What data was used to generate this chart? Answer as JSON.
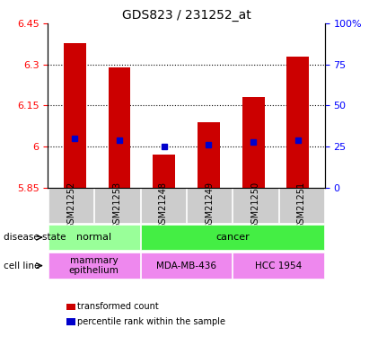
{
  "title": "GDS823 / 231252_at",
  "samples": [
    "GSM21252",
    "GSM21253",
    "GSM21248",
    "GSM21249",
    "GSM21250",
    "GSM21251"
  ],
  "transformed_counts": [
    6.38,
    6.29,
    5.97,
    6.09,
    6.18,
    6.33
  ],
  "percentile_ranks": [
    30,
    29,
    25,
    26,
    28,
    29
  ],
  "ymin": 5.85,
  "ymax": 6.45,
  "yticks": [
    5.85,
    6.0,
    6.15,
    6.3,
    6.45
  ],
  "ytick_labels": [
    "5.85",
    "6",
    "6.15",
    "6.3",
    "6.45"
  ],
  "y2ticks": [
    0,
    25,
    50,
    75,
    100
  ],
  "y2tick_labels": [
    "0",
    "25",
    "50",
    "75",
    "100%"
  ],
  "bar_color": "#cc0000",
  "dot_color": "#0000cc",
  "bar_width": 0.5,
  "disease_states": [
    {
      "label": "normal",
      "samples": [
        0,
        1
      ],
      "color": "#99ff99"
    },
    {
      "label": "cancer",
      "samples": [
        2,
        3,
        4,
        5
      ],
      "color": "#44ee44"
    }
  ],
  "cell_lines": [
    {
      "label": "mammary\nepithelium",
      "samples": [
        0,
        1
      ],
      "color": "#ee88ee"
    },
    {
      "label": "MDA-MB-436",
      "samples": [
        2,
        3
      ],
      "color": "#ee88ee"
    },
    {
      "label": "HCC 1954",
      "samples": [
        4,
        5
      ],
      "color": "#ee88ee"
    }
  ],
  "legend_items": [
    {
      "color": "#cc0000",
      "label": "transformed count"
    },
    {
      "color": "#0000cc",
      "label": "percentile rank within the sample"
    }
  ],
  "sample_bg_color": "#cccccc",
  "left_labels": [
    "disease state",
    "cell line"
  ]
}
